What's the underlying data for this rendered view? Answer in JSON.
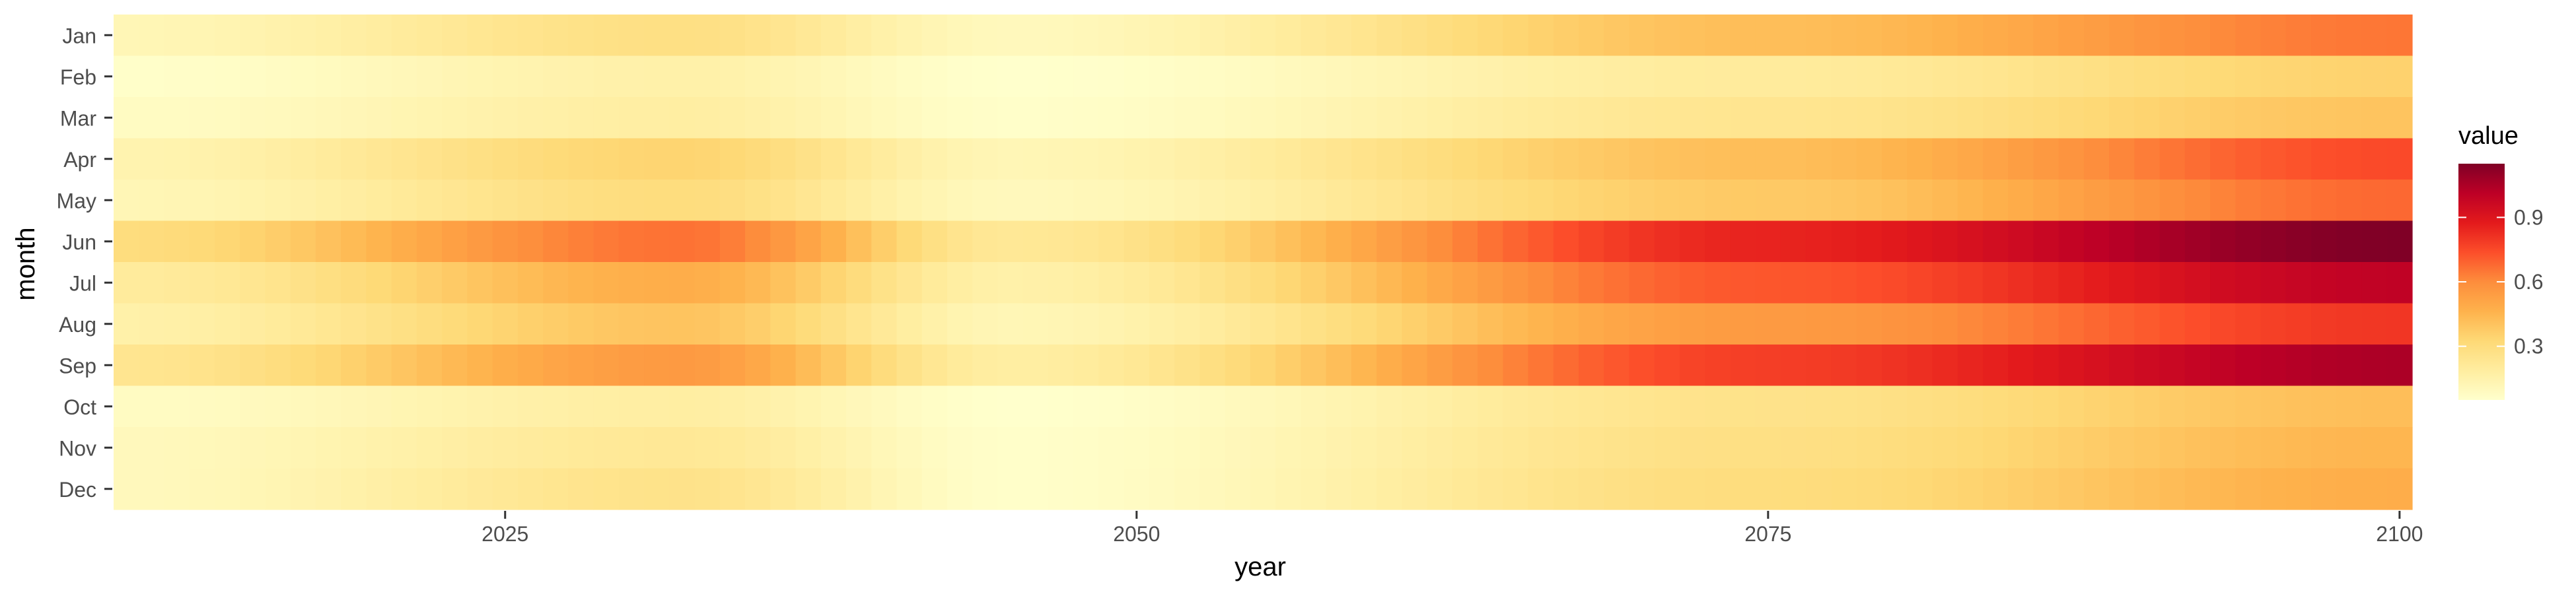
{
  "chart_data": {
    "type": "heatmap",
    "title": "",
    "xlabel": "year",
    "ylabel": "month",
    "x_range": [
      2010,
      2100
    ],
    "x_ticks": [
      "2025",
      "2050",
      "2075",
      "2100"
    ],
    "y_categories": [
      "Jan",
      "Feb",
      "Mar",
      "Apr",
      "May",
      "Jun",
      "Jul",
      "Aug",
      "Sep",
      "Oct",
      "Nov",
      "Dec"
    ],
    "legend": {
      "title": "value",
      "ticks": [
        "0.9",
        "0.6",
        "0.3"
      ],
      "range": [
        0.05,
        1.15
      ],
      "placement": "right",
      "palette": [
        "#ffffcc",
        "#ffeda0",
        "#fed976",
        "#feb24c",
        "#fd8d3c",
        "#fc4e2a",
        "#e31a1c",
        "#bd0026",
        "#800026"
      ]
    },
    "colors": {
      "axis_text": "#4d4d4d",
      "tick": "#333333"
    },
    "rows": {
      "Jan": {
        "p0": 0.12,
        "p2032": 0.28,
        "p2045": 0.1,
        "p2075": 0.42,
        "p2100": 0.65
      },
      "Feb": {
        "p0": 0.06,
        "p2032": 0.16,
        "p2045": 0.05,
        "p2075": 0.2,
        "p2100": 0.35
      },
      "Mar": {
        "p0": 0.08,
        "p2032": 0.18,
        "p2045": 0.06,
        "p2075": 0.24,
        "p2100": 0.4
      },
      "Apr": {
        "p0": 0.14,
        "p2032": 0.34,
        "p2045": 0.12,
        "p2075": 0.42,
        "p2100": 0.75
      },
      "May": {
        "p0": 0.12,
        "p2032": 0.3,
        "p2045": 0.1,
        "p2075": 0.38,
        "p2100": 0.68
      },
      "Jun": {
        "p0": 0.3,
        "p2032": 0.66,
        "p2045": 0.22,
        "p2075": 0.85,
        "p2100": 1.15
      },
      "Jul": {
        "p0": 0.2,
        "p2032": 0.48,
        "p2045": 0.16,
        "p2075": 0.72,
        "p2100": 1.0
      },
      "Aug": {
        "p0": 0.16,
        "p2032": 0.4,
        "p2045": 0.12,
        "p2075": 0.55,
        "p2100": 0.8
      },
      "Sep": {
        "p0": 0.24,
        "p2032": 0.55,
        "p2045": 0.18,
        "p2075": 0.78,
        "p2100": 1.05
      },
      "Oct": {
        "p0": 0.08,
        "p2032": 0.18,
        "p2045": 0.05,
        "p2075": 0.26,
        "p2100": 0.42
      },
      "Nov": {
        "p0": 0.1,
        "p2032": 0.22,
        "p2045": 0.06,
        "p2075": 0.28,
        "p2100": 0.45
      },
      "Dec": {
        "p0": 0.1,
        "p2032": 0.26,
        "p2045": 0.06,
        "p2075": 0.3,
        "p2100": 0.48
      }
    }
  }
}
